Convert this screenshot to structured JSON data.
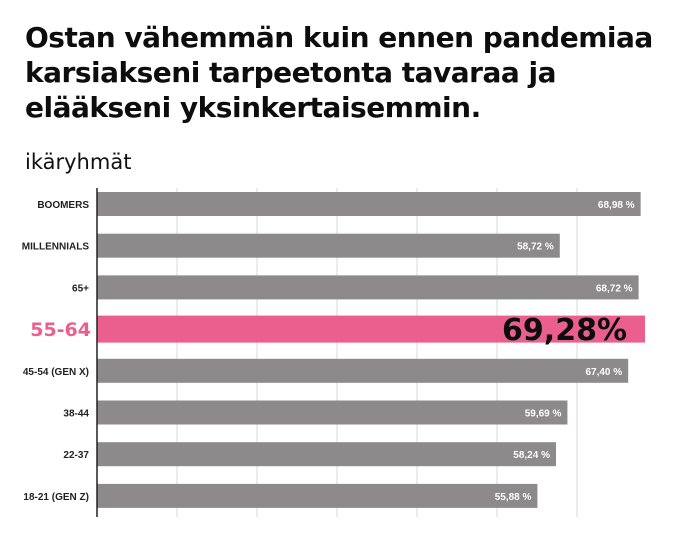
{
  "title": "Ostan vähemmän kuin ennen pandemiaa karsiakseni tarpeetonta tavaraa ja elääkseni yksinkertaisemmin.",
  "subtitle": "ikäryhmät",
  "colors": {
    "bar": "#8c8a8b",
    "highlight": "#eb5f8f",
    "grid": "#d9d9d9",
    "axis": "#222222"
  },
  "chart_data": {
    "type": "bar",
    "orientation": "horizontal",
    "title": "Ostan vähemmän kuin ennen pandemiaa karsiakseni tarpeetonta tavaraa ja elääkseni yksinkertaisemmin.",
    "subtitle": "ikäryhmät",
    "categories": [
      "BOOMERS",
      "MILLENNIALS",
      "65+",
      "55-64",
      "45-54 (GEN X)",
      "38-44",
      "22-37",
      "18-21 (GEN Z)"
    ],
    "values": [
      68.98,
      58.72,
      68.72,
      69.28,
      67.4,
      59.69,
      58.24,
      55.88
    ],
    "value_labels": [
      "68,98 %",
      "58,72 %",
      "68,72 %",
      "69,28%",
      "67,40 %",
      "59,69 %",
      "58,24 %",
      "55,88 %"
    ],
    "highlight_index": 3,
    "xlim": [
      0,
      70
    ],
    "grid": true
  }
}
